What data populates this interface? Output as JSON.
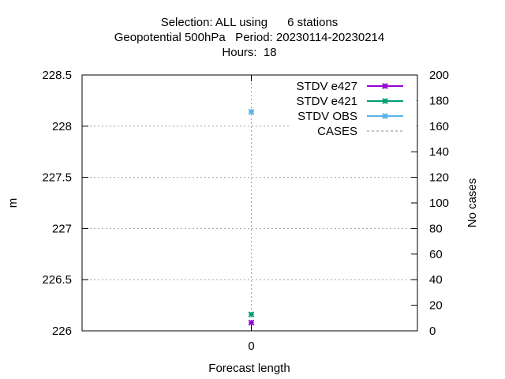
{
  "chart_data": {
    "type": "scatter",
    "title_lines": [
      "Selection: ALL using      6 stations",
      "Geopotential 500hPa   Period: 20230114-20230214",
      "Hours:  18"
    ],
    "xlabel": "Forecast length",
    "ylabel": "m",
    "y2label": "No cases",
    "x_ticks": [
      "0"
    ],
    "x": [
      0
    ],
    "ylim": [
      226,
      228.5
    ],
    "y_ticks": [
      "226",
      "226.5",
      "227",
      "227.5",
      "228",
      "228.5"
    ],
    "y2lim": [
      0,
      200
    ],
    "y2_ticks": [
      "0",
      "20",
      "40",
      "60",
      "80",
      "100",
      "120",
      "140",
      "160",
      "180",
      "200"
    ],
    "grid": true,
    "legend_position": "top-right",
    "series": [
      {
        "name": "STDV e427",
        "color": "#9400d3",
        "values": [
          226.08
        ],
        "marker": "x",
        "axis": "left"
      },
      {
        "name": "STDV e421",
        "color": "#009e73",
        "values": [
          226.16
        ],
        "marker": "x",
        "axis": "left"
      },
      {
        "name": "STDV OBS",
        "color": "#56b4e9",
        "values": [
          228.14
        ],
        "marker": "x",
        "axis": "left"
      },
      {
        "name": "CASES",
        "color": "#888888",
        "values": [],
        "marker": "none",
        "dashed": true,
        "axis": "right"
      }
    ]
  }
}
